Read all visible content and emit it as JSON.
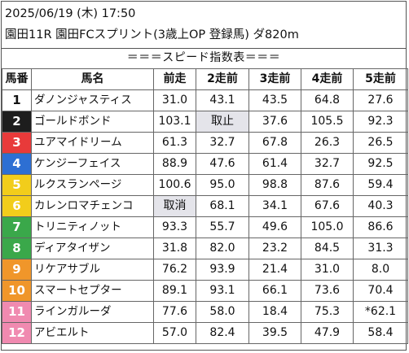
{
  "header": {
    "line1": "2025/06/19 (木) 17:50",
    "line2": "園田11R 園田FCスプリント(3歳上OP 登録馬) ダ820m"
  },
  "table_title": "＝＝＝スピード指数表＝＝＝",
  "columns": [
    "馬番",
    "馬名",
    "前走",
    "2走前",
    "3走前",
    "4走前",
    "5走前"
  ],
  "rows": [
    {
      "num": "1",
      "name": "ダノンジャスティス",
      "v": [
        "31.0",
        "43.1",
        "43.5",
        "64.8",
        "27.6"
      ]
    },
    {
      "num": "2",
      "name": "ゴールドボンド",
      "v": [
        "103.1",
        "取止",
        "37.6",
        "105.5",
        "92.3"
      ]
    },
    {
      "num": "3",
      "name": "ユアマイドリーム",
      "v": [
        "61.3",
        "32.7",
        "67.8",
        "26.3",
        "26.5"
      ]
    },
    {
      "num": "4",
      "name": "ケンジーフェイス",
      "v": [
        "88.9",
        "47.6",
        "61.4",
        "32.7",
        "92.5"
      ]
    },
    {
      "num": "5",
      "name": "ルクスランページ",
      "v": [
        "100.6",
        "95.0",
        "98.8",
        "87.6",
        "59.4"
      ]
    },
    {
      "num": "6",
      "name": "カレンロマチェンコ",
      "v": [
        "取消",
        "68.1",
        "34.1",
        "67.6",
        "40.3"
      ]
    },
    {
      "num": "7",
      "name": "トリニティノット",
      "v": [
        "93.3",
        "55.7",
        "49.6",
        "105.0",
        "86.6"
      ]
    },
    {
      "num": "8",
      "name": "ディアタイザン",
      "v": [
        "31.8",
        "82.0",
        "23.2",
        "84.5",
        "31.3"
      ]
    },
    {
      "num": "9",
      "name": "リケアサブル",
      "v": [
        "76.2",
        "93.9",
        "21.4",
        "31.0",
        "8.0"
      ]
    },
    {
      "num": "10",
      "name": "スマートセプター",
      "v": [
        "89.1",
        "93.1",
        "66.1",
        "73.6",
        "70.4"
      ]
    },
    {
      "num": "11",
      "name": "ラインガルーダ",
      "v": [
        "77.6",
        "58.0",
        "18.4",
        "75.3",
        "*62.1"
      ]
    },
    {
      "num": "12",
      "name": "アビエルト",
      "v": [
        "57.0",
        "82.4",
        "39.5",
        "47.9",
        "58.4"
      ]
    }
  ],
  "gate_colors": {
    "1": "#ffffff",
    "2": "#1d1d1d",
    "3": "#e83a3a",
    "4": "#2d6fd3",
    "5": "#f2cd1b",
    "6": "#f2cd1b",
    "7": "#3aa84a",
    "8": "#3aa84a",
    "9": "#f0962a",
    "10": "#f0962a",
    "11": "#f08ab0",
    "12": "#f08ab0"
  },
  "cancel_marks": [
    "取止",
    "取消"
  ]
}
